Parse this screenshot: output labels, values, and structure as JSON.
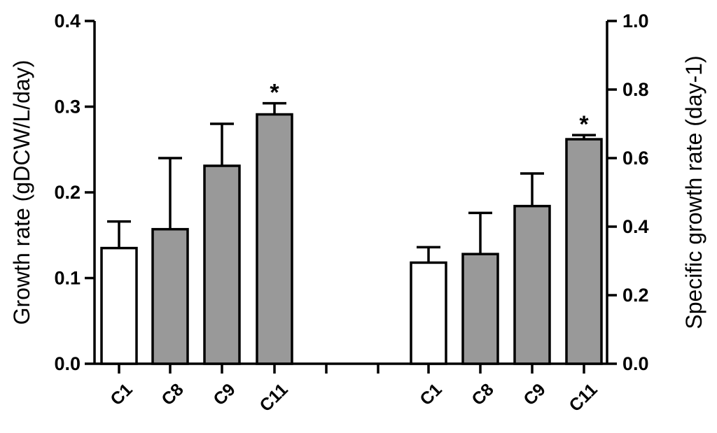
{
  "chart_data": {
    "type": "bar",
    "panels": [
      {
        "axis": "left",
        "ylabel": "Growth rate (gDCW/L/day)",
        "ylim": [
          0,
          0.4
        ],
        "ticks": [
          "0.0",
          "0.1",
          "0.2",
          "0.3",
          "0.4"
        ],
        "tick_values": [
          0.0,
          0.1,
          0.2,
          0.3,
          0.4
        ],
        "categories": [
          "C1",
          "C8",
          "C9",
          "C11"
        ],
        "values": [
          0.135,
          0.157,
          0.231,
          0.291
        ],
        "errors": [
          0.031,
          0.083,
          0.049,
          0.013
        ],
        "significance": [
          "",
          "",
          "",
          "*"
        ],
        "fills": [
          "#ffffff",
          "#999999",
          "#999999",
          "#999999"
        ]
      },
      {
        "axis": "right",
        "ylabel": "Specific growth rate (day-1)",
        "ylim": [
          0,
          1.0
        ],
        "ticks": [
          "0.0",
          "0.2",
          "0.4",
          "0.6",
          "0.8",
          "1.0"
        ],
        "tick_values": [
          0.0,
          0.2,
          0.4,
          0.6,
          0.8,
          1.0
        ],
        "categories": [
          "C1",
          "C8",
          "C9",
          "C11"
        ],
        "values": [
          0.295,
          0.32,
          0.46,
          0.655
        ],
        "errors": [
          0.045,
          0.12,
          0.095,
          0.012
        ],
        "significance": [
          "",
          "",
          "",
          "*"
        ],
        "fills": [
          "#ffffff",
          "#999999",
          "#999999",
          "#999999"
        ]
      }
    ],
    "grid": false,
    "legend": "none"
  }
}
